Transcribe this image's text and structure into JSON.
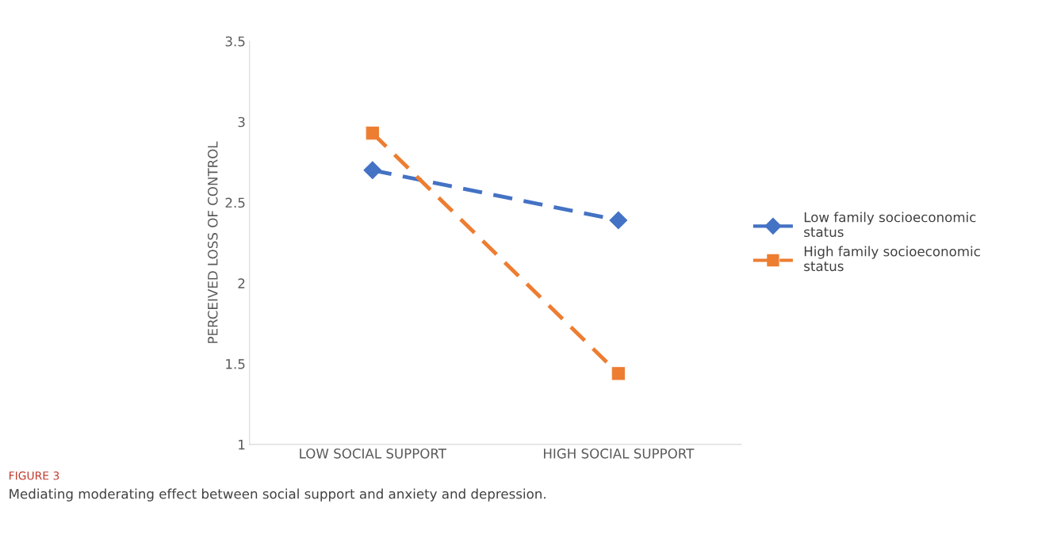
{
  "chart_data": {
    "type": "line",
    "title": "FIGURE 3",
    "annotations": [
      "Mediating moderating effect between social support and anxiety and depression."
    ],
    "ylabel": "PERCEIVED LOSS OF CONTROL",
    "categories": [
      "LOW SOCIAL SUPPORT",
      "HIGH SOCIAL SUPPORT"
    ],
    "series": [
      {
        "name": "Low family socioeconomic\nstatus",
        "color": "#4472c4",
        "values": [
          2.7,
          2.39
        ],
        "marker": "diamond"
      },
      {
        "name": "High family socioeconomic\nstatus",
        "color": "#ed7d31",
        "values": [
          2.93,
          1.44
        ],
        "marker": "square"
      }
    ],
    "ylim": [
      1,
      3.5
    ],
    "yticks": [
      1,
      1.5,
      2,
      2.5,
      3,
      3.5
    ],
    "grid": false,
    "legend": "right",
    "line_style": "dashed"
  }
}
